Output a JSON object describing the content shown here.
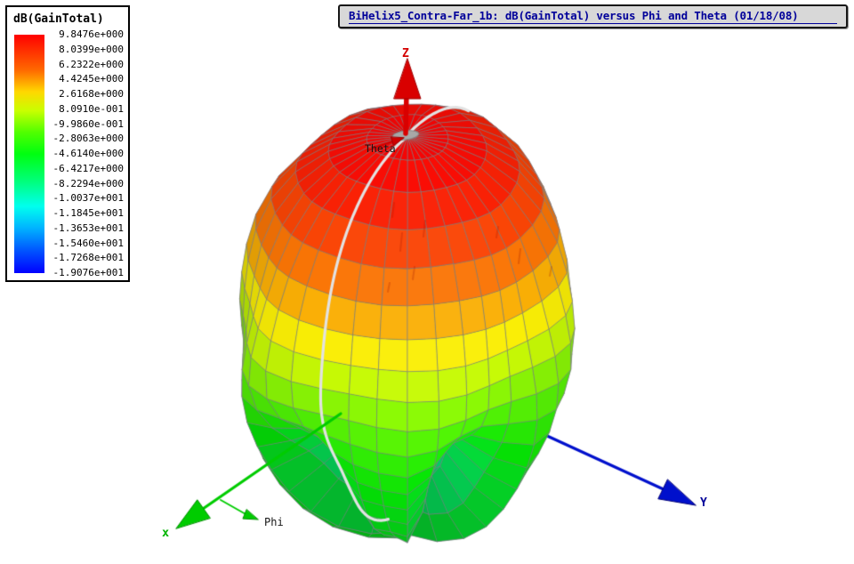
{
  "title_bar": {
    "text": "BiHelix5_Contra-Far_1b: dB(GainTotal) versus Phi and Theta (01/18/08)"
  },
  "legend": {
    "header": "dB(GainTotal)",
    "values": [
      "9.8476e+000",
      "8.0399e+000",
      "6.2322e+000",
      "4.4245e+000",
      "2.6168e+000",
      "8.0910e-001",
      "-9.9860e-001",
      "-2.8063e+000",
      "-4.6140e+000",
      "-6.4217e+000",
      "-8.2294e+000",
      "-1.0037e+001",
      "-1.1845e+001",
      "-1.3653e+001",
      "-1.5460e+001",
      "-1.7268e+001",
      "-1.9076e+001"
    ]
  },
  "axis_labels": {
    "z": "Z",
    "y": "Y",
    "x": "x",
    "theta": "Theta",
    "phi": "Phi"
  },
  "colors": {
    "title_text": "#00009a",
    "title_bg": "#d8d8d8",
    "axis_x": "#00cc00",
    "axis_y": "#0010cc",
    "axis_z": "#d90000",
    "mesh_line": "#7d7d87",
    "seam": "#e2e2e2",
    "pole_cap": "#a8a8a8",
    "colorbar_top": "#ff0000",
    "colorbar_bottom": "#0000ff"
  },
  "chart_data": {
    "type": "surface-3d",
    "title": "BiHelix5_Contra-Far_1b: dB(GainTotal) versus Phi and Theta (01/18/08)",
    "quantity": "dB(GainTotal)",
    "independent_axes": [
      "Phi",
      "Theta"
    ],
    "coordinate_axes": [
      "x",
      "Y",
      "Z"
    ],
    "legend_position": "top-left",
    "colormap": "rainbow red=max blue=min",
    "value_range_db": [
      -19.076,
      9.8476
    ],
    "colorbar_tick_labels": [
      "9.8476e+000",
      "8.0399e+000",
      "6.2322e+000",
      "4.4245e+000",
      "2.6168e+000",
      "8.0910e-001",
      "-9.9860e-001",
      "-2.8063e+000",
      "-4.6140e+000",
      "-6.4217e+000",
      "-8.2294e+000",
      "-1.0037e+001",
      "-1.1845e+001",
      "-1.3653e+001",
      "-1.5460e+001",
      "-1.7268e+001",
      "-1.9076e+001"
    ],
    "colorbar_tick_values": [
      9.8476,
      8.0399,
      6.2322,
      4.4245,
      2.6168,
      0.8091,
      -0.9986,
      -2.8063,
      -4.614,
      -6.4217,
      -8.2294,
      -10.037,
      -11.845,
      -13.653,
      -15.46,
      -17.268,
      -19.076
    ],
    "pattern_shape": "main lobe along +Z (red), rippled side/back lobes below (green), phi=0 meridian marked white"
  }
}
